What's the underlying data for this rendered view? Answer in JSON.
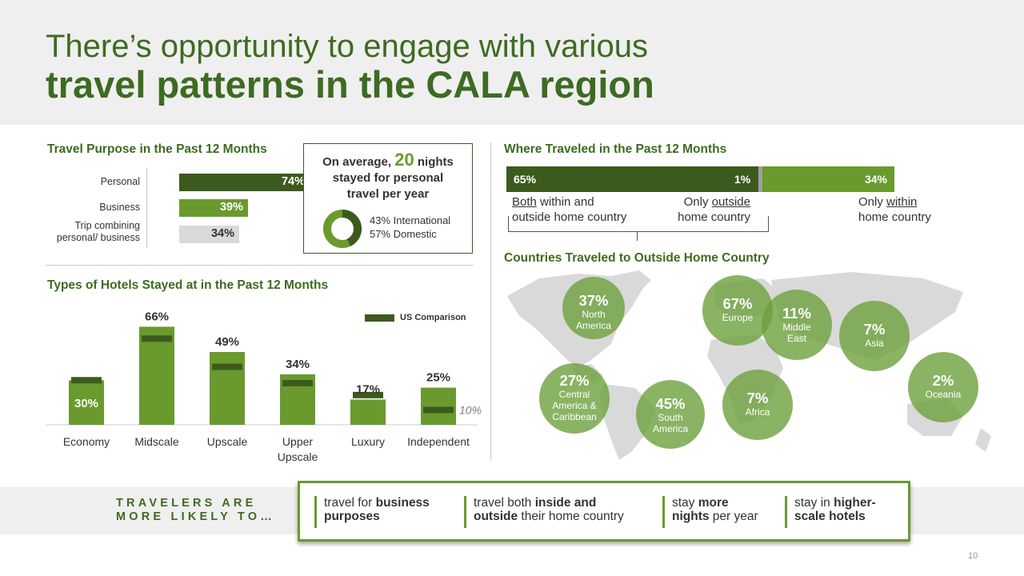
{
  "header": {
    "title_line1": "There’s opportunity to engage with various",
    "title_line2": "travel patterns in the CALA region"
  },
  "travel_purpose": {
    "title": "Travel Purpose in the Past 12 Months",
    "items": [
      {
        "label": "Personal",
        "value": "74%",
        "pct": 74,
        "color": "#3d5a1e",
        "text_color": "#ffffff"
      },
      {
        "label": "Business",
        "value": "39%",
        "pct": 39,
        "color": "#6a9a2e",
        "text_color": "#ffffff"
      },
      {
        "label_line1": "Trip combining",
        "label_line2": "personal/ business",
        "value": "34%",
        "pct": 34,
        "color": "#d9d9d9",
        "text_color": "#333333"
      }
    ]
  },
  "average_nights": {
    "prefix": "On average,",
    "number": "20",
    "suffix": "nights",
    "line2": "stayed for personal",
    "line3": "travel per year",
    "international": "43% International",
    "domestic": "57% Domestic",
    "international_share": 43,
    "domestic_share": 57
  },
  "hotels": {
    "title": "Types of Hotels Stayed at in the Past 12 Months",
    "legend": "US Comparison",
    "independent_us_note": "10%",
    "chart_data": {
      "type": "bar",
      "categories": [
        "Economy",
        "Midscale",
        "Upscale",
        "Upper Upscale",
        "Luxury",
        "Independent"
      ],
      "series": [
        {
          "name": "",
          "values": [
            30,
            66,
            49,
            34,
            17,
            25
          ]
        },
        {
          "name": "US Comparison",
          "values": [
            30,
            58,
            39,
            28,
            20,
            10
          ]
        }
      ],
      "data_labels": [
        "30%",
        "66%",
        "49%",
        "34%",
        "17%",
        "25%"
      ],
      "ylim": [
        0,
        70
      ],
      "grid": false,
      "legend": "top-right"
    }
  },
  "where_traveled": {
    "title": "Where Traveled in the Past 12 Months",
    "segments": [
      {
        "value": "65%",
        "pct": 65,
        "color": "#3d5a1e"
      },
      {
        "value": "1%",
        "pct": 1,
        "color": "#a0a0a0"
      },
      {
        "value": "34%",
        "pct": 34,
        "color": "#6a9a2e"
      }
    ],
    "both": {
      "u": "Both",
      "rest1": " within and",
      "line2": "outside home country"
    },
    "outside": {
      "pre": "Only ",
      "u": "outside",
      "line2": "home country"
    },
    "within": {
      "pre": "Only ",
      "u": "within",
      "line2": "home country"
    }
  },
  "countries": {
    "title": "Countries Traveled to Outside Home Country",
    "bubbles": [
      {
        "pct": "37%",
        "label1": "North",
        "label2": "America",
        "label3": ""
      },
      {
        "pct": "27%",
        "label1": "Central",
        "label2": "America &",
        "label3": "Caribbean"
      },
      {
        "pct": "45%",
        "label1": "South",
        "label2": "America",
        "label3": ""
      },
      {
        "pct": "67%",
        "label1": "Europe",
        "label2": "",
        "label3": ""
      },
      {
        "pct": "11%",
        "label1": "Middle",
        "label2": "East",
        "label3": ""
      },
      {
        "pct": "7%",
        "label1": "Africa",
        "label2": "",
        "label3": ""
      },
      {
        "pct": "7%",
        "label1": "Asia",
        "label2": "",
        "label3": ""
      },
      {
        "pct": "2%",
        "label1": "Oceania",
        "label2": "",
        "label3": ""
      }
    ]
  },
  "footer": {
    "title_line1": "TRAVELERS ARE",
    "title_line2": "MORE LIKELY TO…",
    "items": [
      {
        "a": "travel for ",
        "b": "business",
        "c": "",
        "d": "purposes",
        "e": ""
      },
      {
        "a": "travel both ",
        "b": "inside and",
        "c": "",
        "d": "outside",
        "e": " their home country"
      },
      {
        "a": "stay ",
        "b": "more",
        "c": "",
        "d": "nights",
        "e": " per year"
      },
      {
        "a": "stay in ",
        "b": "higher-",
        "c": "",
        "d": "scale hotels",
        "e": ""
      }
    ]
  },
  "page_number": "10"
}
